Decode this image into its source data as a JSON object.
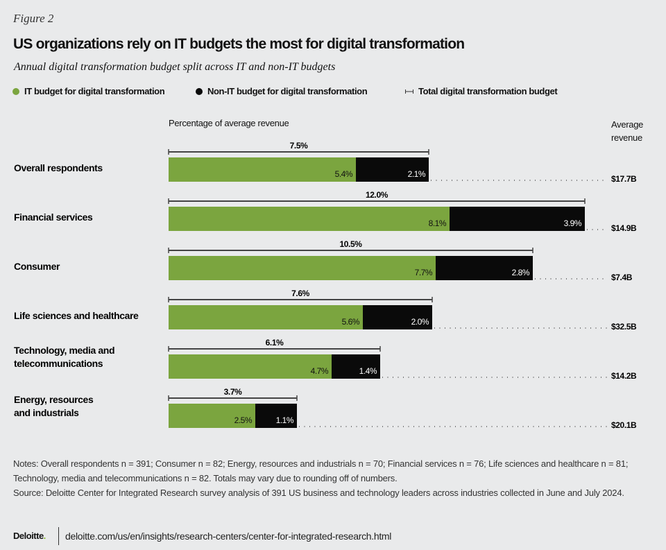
{
  "figure_label": "Figure 2",
  "title": "US organizations rely on IT budgets the most for digital transformation",
  "subtitle": "Annual digital transformation budget split across IT and non-IT budgets",
  "legend": {
    "it": "IT budget for digital transformation",
    "nonit": "Non-IT budget for digital transformation",
    "total": "Total digital transformation budget"
  },
  "colors": {
    "it": "#7ba53f",
    "nonit": "#0a0a0a",
    "background": "#e9eaeb"
  },
  "chart_data": {
    "type": "bar",
    "stacked": true,
    "orientation": "horizontal",
    "xlabel": "Percentage of average revenue",
    "right_column_label": "Average revenue",
    "categories": [
      "Overall respondents",
      "Financial services",
      "Consumer",
      "Life sciences and healthcare",
      "Technology, media and telecommunications",
      "Energy, resources and industrials"
    ],
    "series": [
      {
        "name": "IT budget for digital transformation",
        "values": [
          5.4,
          8.1,
          7.7,
          5.6,
          4.7,
          2.5
        ],
        "labels": [
          "5.4%",
          "8.1%",
          "7.7%",
          "5.6%",
          "4.7%",
          "2.5%"
        ]
      },
      {
        "name": "Non-IT budget for digital transformation",
        "values": [
          2.1,
          3.9,
          2.8,
          2.0,
          1.4,
          1.1
        ],
        "labels": [
          "2.1%",
          "3.9%",
          "2.8%",
          "2.0%",
          "1.4%",
          "1.1%"
        ]
      }
    ],
    "totals": [
      7.5,
      12.0,
      10.5,
      7.6,
      6.1,
      3.7
    ],
    "total_labels": [
      "7.5%",
      "12.0%",
      "10.5%",
      "7.6%",
      "6.1%",
      "3.7%"
    ],
    "average_revenue": [
      "$17.7B",
      "$14.9B",
      "$7.4B",
      "$32.5B",
      "$14.2B",
      "$20.1B"
    ],
    "xlim": [
      0,
      13
    ]
  },
  "notes": "Notes: Overall respondents n = 391; Consumer n = 82; Energy, resources and industrials n = 70; Financial services n = 76; Life sciences and healthcare n = 81; Technology, media and telecommunications n = 82. Totals may vary due to rounding off of numbers.",
  "source": "Source: Deloitte Center for Integrated Research survey analysis of 391 US business and technology leaders across industries collected in June and July 2024.",
  "logo": "Deloitte",
  "url": "deloitte.com/us/en/insights/research-centers/center-for-integrated-research.html"
}
